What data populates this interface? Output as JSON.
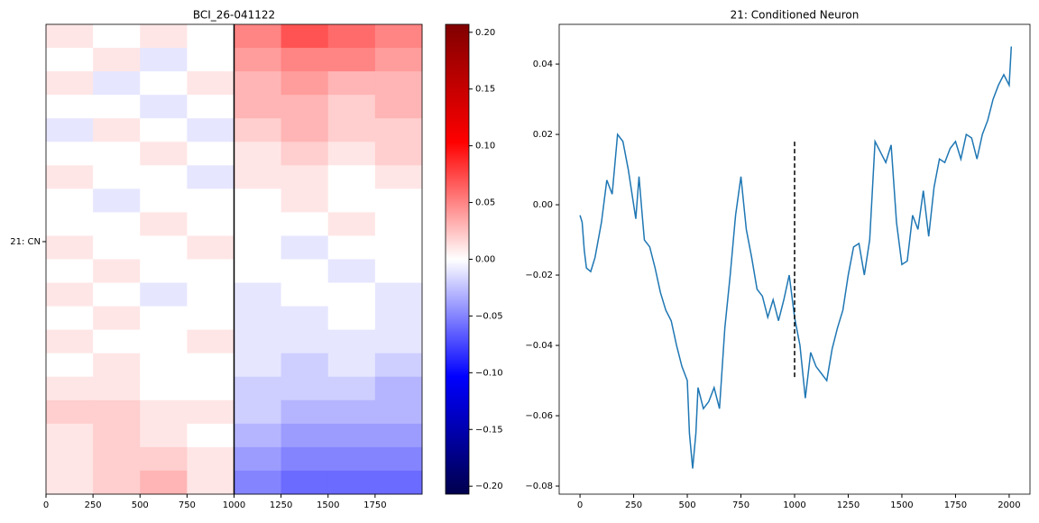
{
  "chart_data": [
    {
      "type": "heatmap",
      "title": "BCI_26-041122",
      "xlim": [
        0,
        2000
      ],
      "xticks": [
        0,
        250,
        500,
        750,
        1000,
        1250,
        1500,
        1750
      ],
      "ylim": [
        0,
        20
      ],
      "origin": "upper",
      "yticks": [
        {
          "value": 9.25,
          "label": "21: CN"
        }
      ],
      "colormap": "seismic",
      "clim": [
        -0.207,
        0.207
      ],
      "cticks": [
        {
          "value": -0.2,
          "label": "−0.20"
        },
        {
          "value": -0.15,
          "label": "−0.15"
        },
        {
          "value": -0.1,
          "label": "−0.10"
        },
        {
          "value": -0.05,
          "label": "−0.05"
        },
        {
          "value": 0,
          "label": "0.00"
        },
        {
          "value": 0.05,
          "label": "0.05"
        },
        {
          "value": 0.1,
          "label": "0.10"
        },
        {
          "value": 0.15,
          "label": "0.15"
        },
        {
          "value": 0.2,
          "label": "0.20"
        }
      ],
      "vline": 1000,
      "vline_color": "#000000",
      "z": [
        [
          0.01,
          0.0,
          0.01,
          0.0,
          0.05,
          0.07,
          0.06,
          0.05
        ],
        [
          0.0,
          0.01,
          -0.01,
          0.0,
          0.04,
          0.05,
          0.05,
          0.04
        ],
        [
          0.01,
          -0.01,
          0.0,
          0.01,
          0.03,
          0.04,
          0.03,
          0.03
        ],
        [
          0.0,
          0.0,
          -0.01,
          0.0,
          0.03,
          0.03,
          0.02,
          0.03
        ],
        [
          -0.01,
          0.01,
          0.0,
          -0.01,
          0.02,
          0.03,
          0.02,
          0.02
        ],
        [
          0.0,
          0.0,
          0.01,
          0.0,
          0.01,
          0.02,
          0.01,
          0.02
        ],
        [
          0.01,
          0.0,
          0.0,
          -0.01,
          0.01,
          0.01,
          0.0,
          0.01
        ],
        [
          0.0,
          -0.01,
          0.0,
          0.0,
          0.0,
          0.01,
          0.0,
          0.0
        ],
        [
          0.0,
          0.0,
          0.01,
          0.0,
          0.0,
          0.0,
          0.01,
          0.0
        ],
        [
          0.01,
          0.0,
          0.0,
          0.01,
          0.0,
          -0.01,
          0.0,
          0.0
        ],
        [
          0.0,
          0.01,
          0.0,
          0.0,
          0.0,
          0.0,
          -0.01,
          0.0
        ],
        [
          0.01,
          0.0,
          -0.01,
          0.0,
          -0.01,
          0.0,
          0.0,
          -0.01
        ],
        [
          0.0,
          0.01,
          0.0,
          0.0,
          -0.01,
          -0.01,
          0.0,
          -0.01
        ],
        [
          0.01,
          0.0,
          0.0,
          0.01,
          -0.01,
          -0.01,
          -0.01,
          -0.01
        ],
        [
          0.0,
          0.01,
          0.0,
          0.0,
          -0.01,
          -0.02,
          -0.01,
          -0.02
        ],
        [
          0.01,
          0.01,
          0.0,
          0.0,
          -0.02,
          -0.02,
          -0.02,
          -0.03
        ],
        [
          0.02,
          0.02,
          0.01,
          0.01,
          -0.02,
          -0.03,
          -0.03,
          -0.03
        ],
        [
          0.01,
          0.02,
          0.01,
          0.0,
          -0.03,
          -0.04,
          -0.04,
          -0.04
        ],
        [
          0.01,
          0.02,
          0.02,
          0.01,
          -0.04,
          -0.05,
          -0.05,
          -0.05
        ],
        [
          0.01,
          0.02,
          0.03,
          0.01,
          -0.05,
          -0.06,
          -0.06,
          -0.06
        ]
      ]
    },
    {
      "type": "line",
      "title": "21: Conditioned Neuron",
      "xlim": [
        -97,
        2097
      ],
      "xticks": [
        0,
        250,
        500,
        750,
        1000,
        1250,
        1500,
        1750,
        2000
      ],
      "ylim": [
        -0.0823,
        0.0513
      ],
      "yticks": [
        {
          "value": -0.08,
          "label": "−0.08"
        },
        {
          "value": -0.06,
          "label": "−0.06"
        },
        {
          "value": -0.04,
          "label": "−0.04"
        },
        {
          "value": -0.02,
          "label": "−0.02"
        },
        {
          "value": 0,
          "label": "0.00"
        },
        {
          "value": 0.02,
          "label": "0.02"
        },
        {
          "value": 0.04,
          "label": "0.04"
        }
      ],
      "x": [
        0,
        10,
        20,
        30,
        50,
        70,
        100,
        125,
        150,
        175,
        200,
        225,
        250,
        260,
        275,
        290,
        300,
        325,
        350,
        375,
        400,
        425,
        450,
        475,
        500,
        510,
        525,
        540,
        550,
        575,
        600,
        625,
        650,
        675,
        700,
        725,
        750,
        775,
        800,
        825,
        850,
        875,
        900,
        925,
        950,
        975,
        1000,
        1025,
        1050,
        1075,
        1100,
        1125,
        1150,
        1175,
        1200,
        1225,
        1250,
        1275,
        1300,
        1325,
        1350,
        1375,
        1400,
        1425,
        1450,
        1475,
        1500,
        1525,
        1550,
        1575,
        1600,
        1625,
        1650,
        1675,
        1700,
        1725,
        1750,
        1775,
        1800,
        1825,
        1850,
        1875,
        1900,
        1925,
        1950,
        1975,
        2000,
        2010
      ],
      "series": [
        {
          "color": "#1f77b4",
          "values": [
            -0.003,
            -0.005,
            -0.013,
            -0.018,
            -0.019,
            -0.015,
            -0.005,
            0.007,
            0.003,
            0.02,
            0.018,
            0.01,
            0.0,
            -0.004,
            0.008,
            -0.003,
            -0.01,
            -0.012,
            -0.018,
            -0.025,
            -0.03,
            -0.033,
            -0.04,
            -0.046,
            -0.05,
            -0.065,
            -0.075,
            -0.065,
            -0.052,
            -0.058,
            -0.056,
            -0.052,
            -0.058,
            -0.035,
            -0.02,
            -0.003,
            0.008,
            -0.007,
            -0.015,
            -0.024,
            -0.026,
            -0.032,
            -0.027,
            -0.033,
            -0.027,
            -0.02,
            -0.032,
            -0.04,
            -0.055,
            -0.042,
            -0.046,
            -0.048,
            -0.05,
            -0.041,
            -0.035,
            -0.03,
            -0.02,
            -0.012,
            -0.011,
            -0.02,
            -0.01,
            0.018,
            0.015,
            0.012,
            0.017,
            -0.005,
            -0.017,
            -0.016,
            -0.003,
            -0.007,
            0.004,
            -0.009,
            0.005,
            0.013,
            0.012,
            0.016,
            0.018,
            0.013,
            0.02,
            0.019,
            0.013,
            0.02,
            0.024,
            0.03,
            0.034,
            0.037,
            0.034,
            0.045
          ]
        }
      ],
      "vline": {
        "x": 1000,
        "ymin": -0.049,
        "ymax": 0.018,
        "color": "#000000",
        "style": "dashed"
      }
    }
  ]
}
